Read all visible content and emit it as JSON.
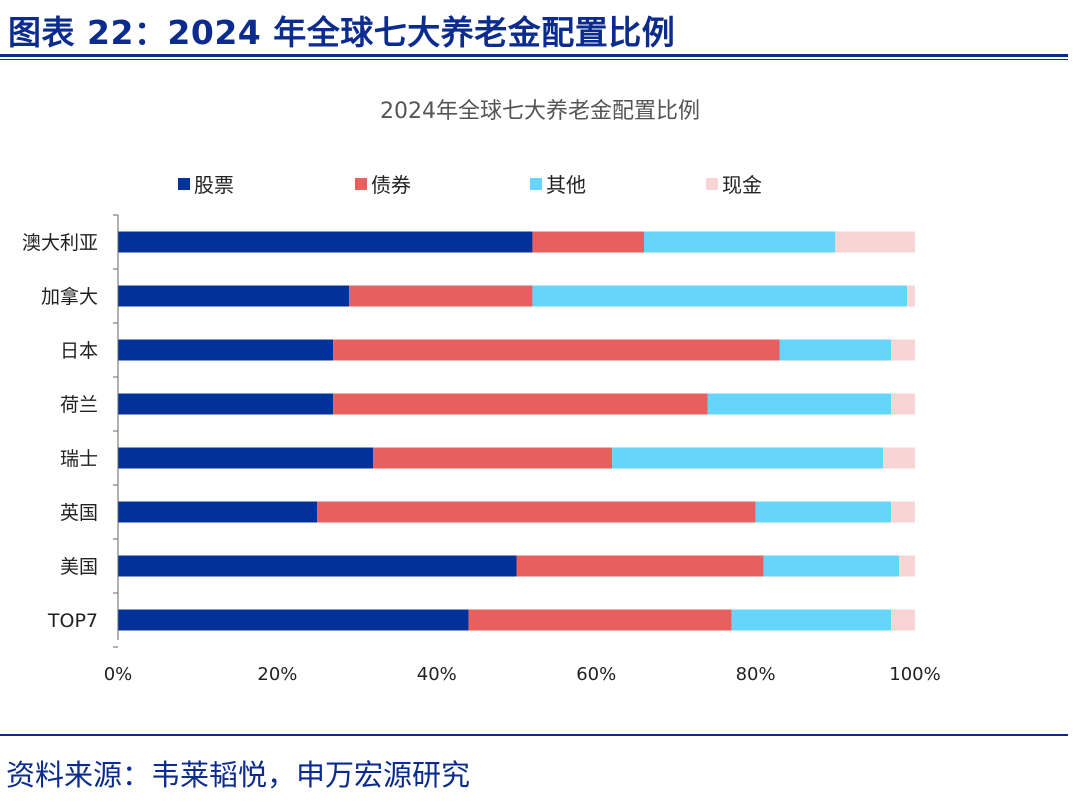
{
  "figure_title": "图表 22：2024 年全球七大养老金配置比例",
  "source": "资料来源：韦莱韬悦，申万宏源研究",
  "chart_data": {
    "type": "bar",
    "orientation": "horizontal",
    "stacked": true,
    "percent_stacked": true,
    "title": "2024年全球七大养老金配置比例",
    "categories": [
      "澳大利亚",
      "加拿大",
      "日本",
      "荷兰",
      "瑞士",
      "英国",
      "美国",
      "TOP7"
    ],
    "series": [
      {
        "name": "股票",
        "color": "#00329a",
        "values": [
          52,
          29,
          27,
          27,
          32,
          25,
          50,
          44
        ]
      },
      {
        "name": "债券",
        "color": "#e85f5f",
        "values": [
          14,
          23,
          56,
          47,
          30,
          55,
          31,
          33
        ]
      },
      {
        "name": "其他",
        "color": "#66d5fb",
        "values": [
          24,
          47,
          14,
          23,
          34,
          17,
          17,
          20
        ]
      },
      {
        "name": "现金",
        "color": "#f9d4d4",
        "values": [
          10,
          1,
          3,
          3,
          4,
          3,
          2,
          3
        ]
      }
    ],
    "xlim": [
      0,
      100
    ],
    "xticks": [
      "0%",
      "20%",
      "40%",
      "60%",
      "80%",
      "100%"
    ],
    "legend_position": "top",
    "grid": false
  }
}
